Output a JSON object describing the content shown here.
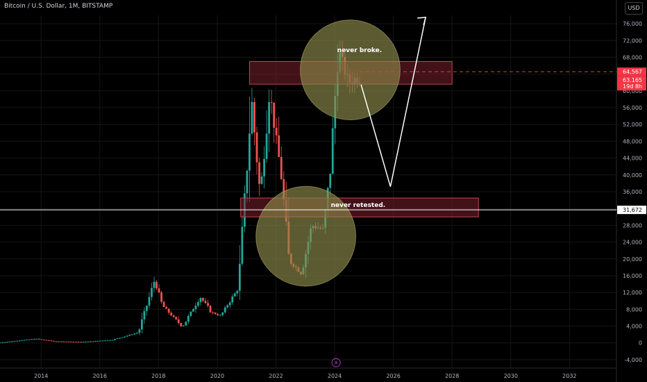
{
  "header": {
    "title": "Bitcoin / U.S. Dollar, 1M, BITSTAMP",
    "currency_button": "USD"
  },
  "colors": {
    "background": "#000000",
    "up_candle": "#26a69a",
    "down_candle": "#ef5350",
    "zone_fill": "#7a1f2b",
    "zone_stroke": "#c2454f",
    "circle_fill": "#8c8b4a",
    "price_tag_red": "#f23645",
    "white_line": "#ffffff"
  },
  "chart_data": {
    "type": "candlestick",
    "x_ticks": [
      "2014",
      "2016",
      "2018",
      "2020",
      "2022",
      "2024",
      "2026",
      "2028",
      "2030",
      "2032"
    ],
    "y_ticks": [
      "76,000",
      "72,000",
      "68,000",
      "64,000",
      "60,000",
      "56,000",
      "52,000",
      "48,000",
      "44,000",
      "40,000",
      "36,000",
      "32,000",
      "28,000",
      "24,000",
      "20,000",
      "16,000",
      "12,000",
      "8,000",
      "4,000",
      "0",
      "-4,000"
    ],
    "y_range": [
      -6000,
      78000
    ],
    "x_range": [
      2012.6,
      2033.6
    ],
    "price_labels": {
      "current_price": "64,567",
      "last_price": "63,165",
      "countdown": "19d 8h",
      "horizontal_level": "31,672"
    },
    "horizontal_level": 31672,
    "current_price": 64567,
    "zones": [
      {
        "x0": 2021.1,
        "x1": 2028.0,
        "y0": 61600,
        "y1": 67000
      },
      {
        "x0": 2020.8,
        "x1": 2028.9,
        "y0": 30000,
        "y1": 34500
      }
    ],
    "circles": [
      {
        "x": 2024.53,
        "y": 65000,
        "r": 1.7
      },
      {
        "x": 2023.02,
        "y": 25400,
        "r": 1.7
      }
    ],
    "annotations": [
      {
        "text": "never broke.",
        "x": 2024.85,
        "y": 69200
      },
      {
        "text": "never retested.",
        "x": 2024.8,
        "y": 32400
      }
    ],
    "projection_path": [
      [
        2024.9,
        61500
      ],
      [
        2025.9,
        37200
      ],
      [
        2027.1,
        77500
      ]
    ]
  }
}
